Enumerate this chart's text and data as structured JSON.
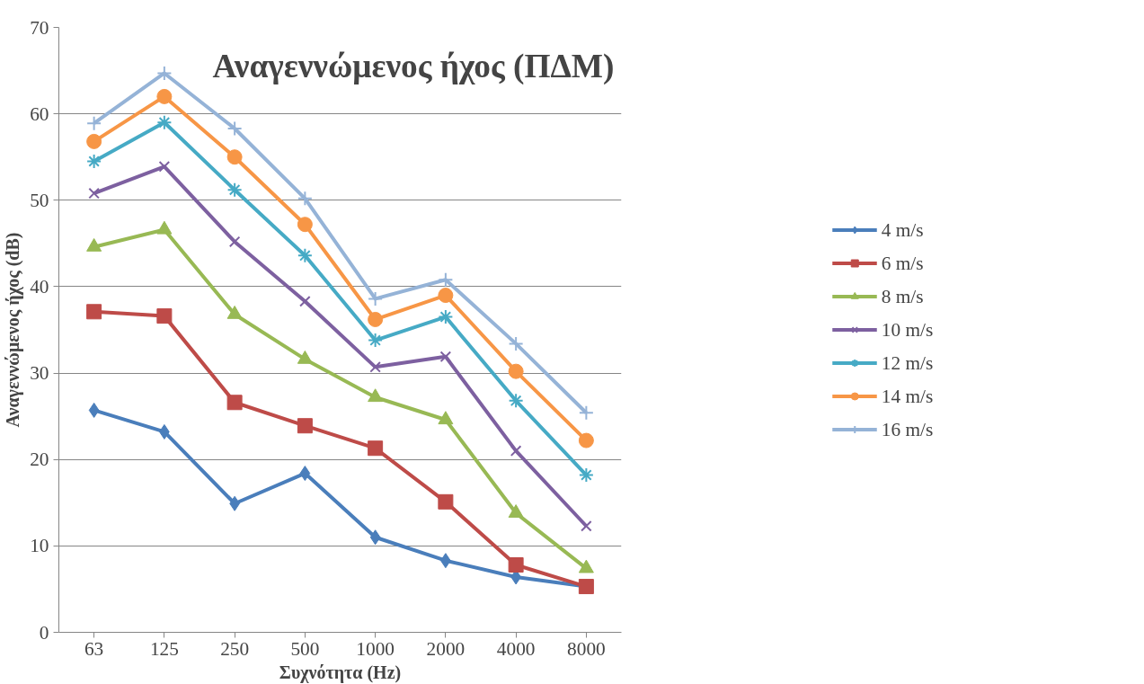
{
  "chart_data": {
    "type": "line",
    "title": "Αναγεννώμενος ήχος (ΠΔΜ)",
    "xlabel": "Συχνότητα (Hz)",
    "ylabel": "Αναγεννώμενος ήχος (dB)",
    "categories": [
      "63",
      "125",
      "250",
      "500",
      "1000",
      "2000",
      "4000",
      "8000"
    ],
    "ylim": [
      0,
      70
    ],
    "yticks": [
      0,
      10,
      20,
      30,
      40,
      50,
      60,
      70
    ],
    "grid": "y",
    "legend": "right",
    "line_style": "solid",
    "series": [
      {
        "name": "4 m/s",
        "color": "#4a7ebb",
        "marker": "diamond",
        "values": [
          25.7,
          23.2,
          14.9,
          18.4,
          11.0,
          8.3,
          6.4,
          5.3
        ]
      },
      {
        "name": "6 m/s",
        "color": "#be4b48",
        "marker": "square",
        "values": [
          37.1,
          36.6,
          26.6,
          23.9,
          21.3,
          15.1,
          7.8,
          5.3
        ]
      },
      {
        "name": "8 m/s",
        "color": "#98b954",
        "marker": "triangle",
        "values": [
          44.6,
          46.6,
          36.8,
          31.6,
          27.2,
          24.6,
          13.8,
          7.4
        ]
      },
      {
        "name": "10 m/s",
        "color": "#7d60a0",
        "marker": "cross",
        "values": [
          50.8,
          53.9,
          45.2,
          38.3,
          30.7,
          31.9,
          21.0,
          12.3
        ]
      },
      {
        "name": "12 m/s",
        "color": "#46aac5",
        "marker": "cross",
        "values": [
          54.5,
          59.0,
          51.2,
          43.6,
          33.8,
          36.5,
          26.8,
          18.2
        ]
      },
      {
        "name": "14 m/s",
        "color": "#f79646",
        "marker": "circle",
        "values": [
          56.8,
          62.0,
          55.0,
          47.2,
          36.2,
          39.0,
          30.2,
          22.2
        ]
      },
      {
        "name": "16 m/s",
        "color": "#95b3d7",
        "marker": "cross",
        "values": [
          58.9,
          64.7,
          58.3,
          50.2,
          38.6,
          40.8,
          33.4,
          25.4
        ]
      }
    ]
  }
}
